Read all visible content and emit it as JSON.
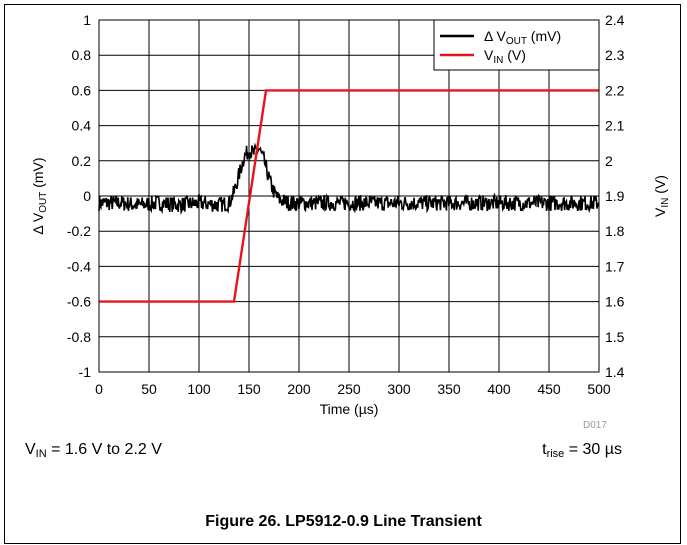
{
  "chart_data": {
    "type": "line",
    "xlabel": "Time (µs)",
    "ylabel_left": {
      "text": "Δ V",
      "sub": "OUT",
      "unit": " (mV)"
    },
    "ylabel_right": {
      "text": "V",
      "sub": "IN",
      "unit": " (V)"
    },
    "xlim": [
      0,
      500
    ],
    "ylim_left": [
      -1,
      1
    ],
    "ylim_right": [
      1.4,
      2.4
    ],
    "x_ticks": [
      "0",
      "50",
      "100",
      "150",
      "200",
      "250",
      "300",
      "350",
      "400",
      "450",
      "500"
    ],
    "y_ticks_left": [
      "1",
      "0.8",
      "0.6",
      "0.4",
      "0.2",
      "0",
      "-0.2",
      "-0.4",
      "-0.6",
      "-0.8",
      "-1"
    ],
    "y_ticks_right": [
      "2.4",
      "2.3",
      "2.2",
      "2.1",
      "2",
      "1.9",
      "1.8",
      "1.7",
      "1.6",
      "1.5",
      "1.4"
    ],
    "grid": true,
    "legend_position": "top-right",
    "series": [
      {
        "name": {
          "text": "Δ V",
          "sub": "OUT",
          "unit": " (mV)"
        },
        "axis": "left",
        "color": "#000000",
        "x": [
          0,
          20,
          40,
          60,
          80,
          100,
          120,
          130,
          135,
          140,
          145,
          150,
          155,
          160,
          165,
          170,
          175,
          180,
          190,
          200,
          250,
          300,
          350,
          400,
          450,
          500
        ],
        "values": [
          -0.04,
          -0.04,
          -0.05,
          -0.04,
          -0.05,
          -0.04,
          -0.05,
          -0.04,
          0.02,
          0.12,
          0.22,
          0.26,
          0.24,
          0.27,
          0.2,
          0.1,
          0.02,
          -0.02,
          -0.04,
          -0.04,
          -0.04,
          -0.04,
          -0.04,
          -0.04,
          -0.04,
          -0.04
        ]
      },
      {
        "name": {
          "text": "V",
          "sub": "IN",
          "unit": " (V)"
        },
        "axis": "right",
        "color": "#e8141c",
        "x": [
          0,
          135,
          167,
          500
        ],
        "values": [
          1.6,
          1.6,
          2.2,
          2.2
        ]
      }
    ]
  },
  "conditions": {
    "left": {
      "pre": "V",
      "sub": "IN",
      "post": " = 1.6 V to 2.2 V"
    },
    "right": {
      "pre": "t",
      "sub": "rise",
      "post": " = 30 µs"
    }
  },
  "doc_code": "D017",
  "caption": "Figure 26. LP5912-0.9 Line Transient"
}
